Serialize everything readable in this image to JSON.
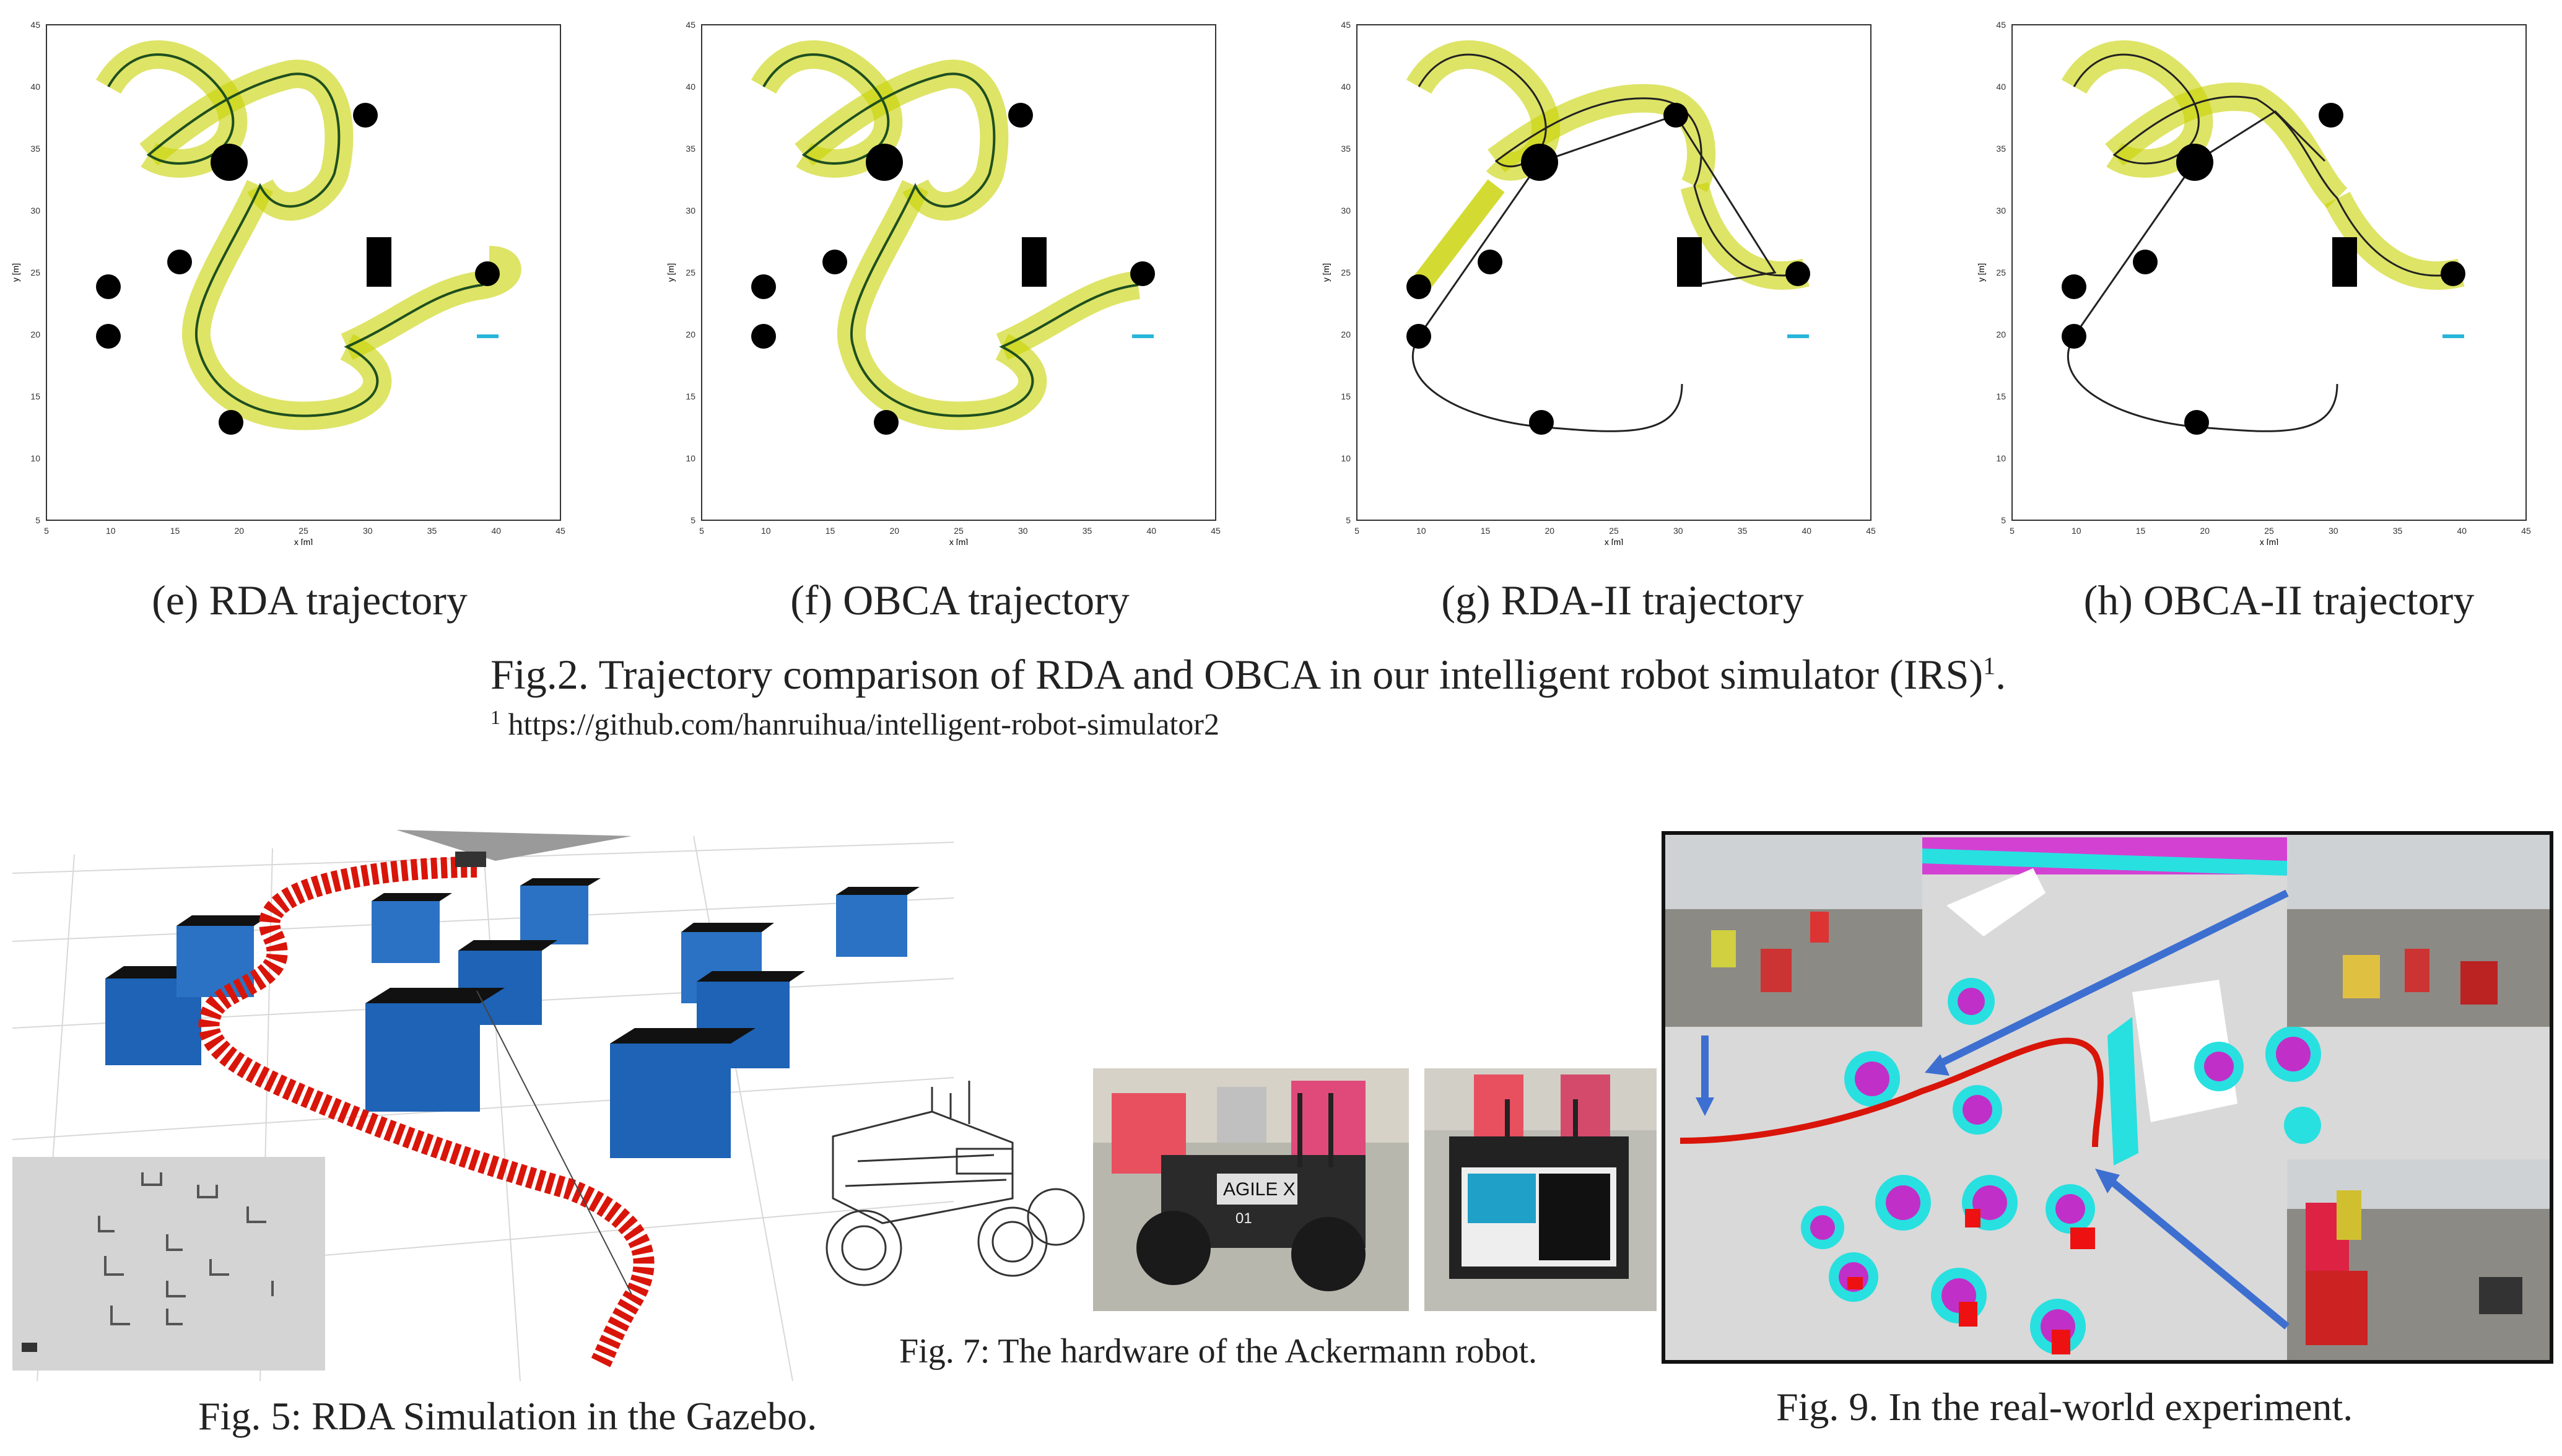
{
  "fig2": {
    "subfigures": [
      {
        "id": "e",
        "caption": "(e) RDA trajectory"
      },
      {
        "id": "f",
        "caption": "(f) OBCA trajectory"
      },
      {
        "id": "g",
        "caption": "(g) RDA-II trajectory"
      },
      {
        "id": "h",
        "caption": "(h) OBCA-II trajectory"
      }
    ],
    "caption": "Fig.2. Trajectory comparison of RDA and OBCA in our intelligent robot simulator (IRS)",
    "caption_sup": "1",
    "caption_end": ".",
    "footnote_mark": "1",
    "footnote_url": "https://github.com/hanruihua/intelligent-robot-simulator2",
    "xlabel": "x [m]",
    "ylabel": "y [m]",
    "xticks": [
      "5",
      "10",
      "15",
      "20",
      "25",
      "30",
      "35",
      "40",
      "45"
    ],
    "yticks": [
      "5",
      "10",
      "15",
      "20",
      "25",
      "30",
      "35",
      "40",
      "45"
    ]
  },
  "fig5": {
    "caption": "Fig. 5: RDA Simulation in the Gazebo."
  },
  "fig7": {
    "caption": "Fig. 7: The hardware of the Ackermann robot.",
    "robot_label": "AGILE X",
    "robot_number": "01"
  },
  "fig9": {
    "caption": "Fig. 9. In the real-world experiment."
  },
  "colors": {
    "trajectory": "#2a6b2a",
    "footprint": "#c8d200",
    "obstacle": "#000000",
    "arrow": "#27b6d8",
    "box": "#1e63b5",
    "snake": "#d9150a"
  }
}
